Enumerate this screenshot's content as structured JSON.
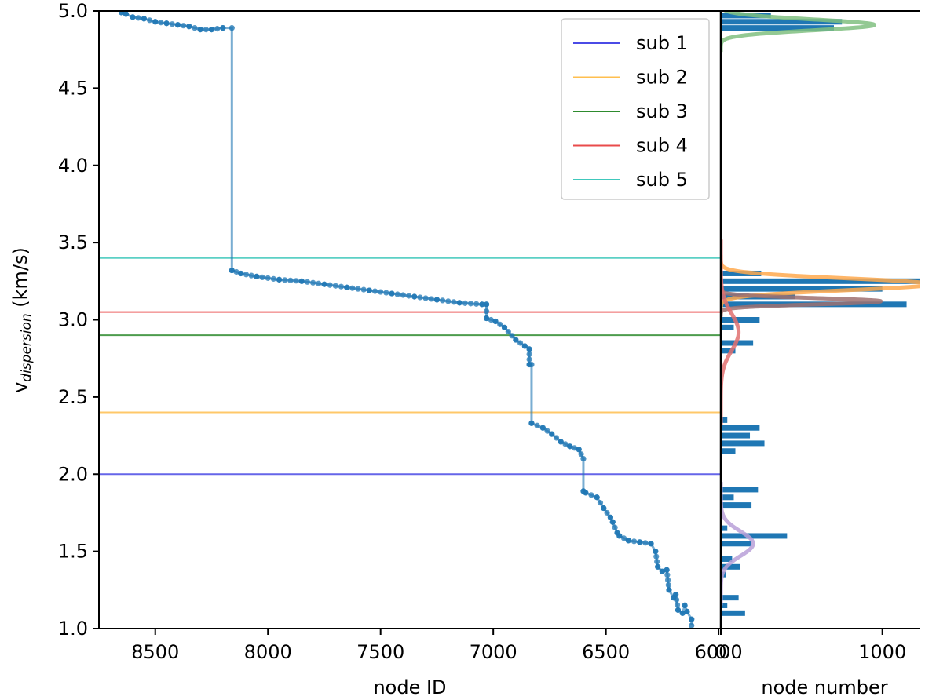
{
  "chart_data": [
    {
      "type": "line",
      "xlabel": "node ID",
      "ylabel_main": "v",
      "ylabel_sub": "dispersion",
      "ylabel_unit": " (km/s)",
      "xlim": [
        8750,
        5990
      ],
      "ylim": [
        1.0,
        5.0
      ],
      "x_ticks": [
        8500,
        8000,
        7500,
        7000,
        6500,
        6000
      ],
      "y_ticks": [
        1.0,
        1.5,
        2.0,
        2.5,
        3.0,
        3.5,
        4.0,
        4.5,
        5.0
      ],
      "grid": false,
      "legend_position": "top-right",
      "series_color": "#1f77b4",
      "x": [
        8650,
        8630,
        8600,
        8550,
        8500,
        8450,
        8400,
        8350,
        8300,
        8250,
        8200,
        8160,
        8160,
        8120,
        8050,
        7950,
        7850,
        7750,
        7650,
        7550,
        7450,
        7350,
        7250,
        7150,
        7050,
        7030,
        7030,
        6990,
        6950,
        6900,
        6860,
        6840,
        6840,
        6830,
        6830,
        6780,
        6740,
        6700,
        6660,
        6620,
        6600,
        6600,
        6590,
        6540,
        6510,
        6480,
        6470,
        6450,
        6440,
        6400,
        6350,
        6300,
        6280,
        6270,
        6250,
        6230,
        6220,
        6200,
        6190,
        6180,
        6160,
        6150,
        6140,
        6120,
        6120
      ],
      "y": [
        4.99,
        4.98,
        4.96,
        4.95,
        4.93,
        4.92,
        4.91,
        4.9,
        4.88,
        4.88,
        4.89,
        4.89,
        3.32,
        3.3,
        3.28,
        3.26,
        3.25,
        3.23,
        3.21,
        3.19,
        3.17,
        3.15,
        3.13,
        3.11,
        3.1,
        3.1,
        3.01,
        2.99,
        2.95,
        2.87,
        2.83,
        2.81,
        2.71,
        2.71,
        2.33,
        2.3,
        2.26,
        2.21,
        2.18,
        2.16,
        2.1,
        1.89,
        1.88,
        1.85,
        1.78,
        1.72,
        1.69,
        1.62,
        1.6,
        1.57,
        1.56,
        1.55,
        1.5,
        1.4,
        1.37,
        1.38,
        1.25,
        1.2,
        1.22,
        1.12,
        1.1,
        1.15,
        1.11,
        1.06,
        1.02
      ],
      "reference_lines": [
        {
          "name": "sub 1",
          "y": 2.0,
          "color": "#4b4be6"
        },
        {
          "name": "sub 2",
          "y": 2.4,
          "color": "#ffbf4f"
        },
        {
          "name": "sub 3",
          "y": 2.9,
          "color": "#2e8b2e"
        },
        {
          "name": "sub 4",
          "y": 3.05,
          "color": "#e94b4b"
        },
        {
          "name": "sub 5",
          "y": 3.4,
          "color": "#40c8bc"
        }
      ]
    },
    {
      "type": "bar",
      "orientation": "horizontal",
      "xlabel": "node number",
      "xlim": [
        0,
        1230
      ],
      "x_ticks": [
        0,
        1000
      ],
      "ylim": [
        1.0,
        5.0
      ],
      "bar_color": "#1f77b4",
      "bins": [
        {
          "y": 4.97,
          "value": 310
        },
        {
          "y": 4.93,
          "value": 750
        },
        {
          "y": 4.89,
          "value": 700
        },
        {
          "y": 3.3,
          "value": 250
        },
        {
          "y": 3.25,
          "value": 1370
        },
        {
          "y": 3.2,
          "value": 1000
        },
        {
          "y": 3.15,
          "value": 460
        },
        {
          "y": 3.1,
          "value": 1150
        },
        {
          "y": 3.0,
          "value": 240
        },
        {
          "y": 2.95,
          "value": 80
        },
        {
          "y": 2.85,
          "value": 200
        },
        {
          "y": 2.8,
          "value": 90
        },
        {
          "y": 2.35,
          "value": 40
        },
        {
          "y": 2.3,
          "value": 240
        },
        {
          "y": 2.25,
          "value": 180
        },
        {
          "y": 2.2,
          "value": 270
        },
        {
          "y": 2.15,
          "value": 90
        },
        {
          "y": 1.9,
          "value": 230
        },
        {
          "y": 1.85,
          "value": 80
        },
        {
          "y": 1.8,
          "value": 190
        },
        {
          "y": 1.65,
          "value": 40
        },
        {
          "y": 1.6,
          "value": 410
        },
        {
          "y": 1.55,
          "value": 190
        },
        {
          "y": 1.45,
          "value": 70
        },
        {
          "y": 1.4,
          "value": 120
        },
        {
          "y": 1.35,
          "value": 30
        },
        {
          "y": 1.2,
          "value": 110
        },
        {
          "y": 1.15,
          "value": 40
        },
        {
          "y": 1.1,
          "value": 150
        }
      ],
      "density_curves": [
        {
          "color": "#80c080",
          "mu": 4.91,
          "sigma": 0.035,
          "peak": 950
        },
        {
          "color": "#ffa94d",
          "mu": 3.23,
          "sigma": 0.038,
          "peak": 1300
        },
        {
          "color": "#9e7070",
          "mu": 3.12,
          "sigma": 0.02,
          "peak": 990
        },
        {
          "color": "#e07070",
          "mu": 2.92,
          "sigma": 0.12,
          "peak": 110
        },
        {
          "color": "#b8a0d8",
          "mu": 1.55,
          "sigma": 0.08,
          "peak": 200
        }
      ]
    }
  ]
}
